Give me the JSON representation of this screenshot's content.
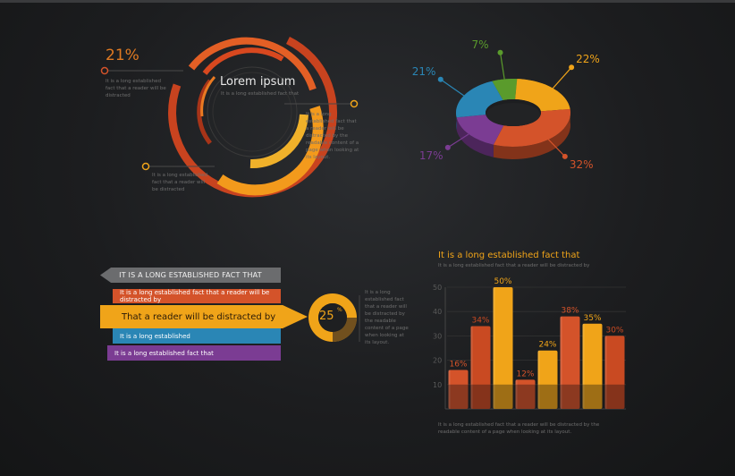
{
  "radial": {
    "percent": "21%",
    "percent_value": 21,
    "left_caption": "It is a long established fact that a reader will be distracted",
    "title": "Lorem ipsum",
    "subtitle": "It is a long established fact that",
    "right_caption": "It is a long established fact that a reader will be distracted by the readable content of a page when looking at its layout.",
    "bottom_caption": "It is a long established fact that a reader will be distracted"
  },
  "donut": {
    "slices": [
      {
        "label": "7%",
        "value": 7,
        "color": "#5a9b2c"
      },
      {
        "label": "22%",
        "value": 22,
        "color": "#f0a419"
      },
      {
        "label": "32%",
        "value": 32,
        "color": "#d4532a"
      },
      {
        "label": "17%",
        "value": 17,
        "color": "#7b3c93"
      },
      {
        "label": "21%",
        "value": 21,
        "color": "#2a86b5"
      }
    ]
  },
  "ribbons": {
    "header": "IT IS A LONG ESTABLISHED FACT THAT",
    "rows": [
      {
        "text": "It is a long established fact that a reader will be distracted by",
        "color": "#d4532a"
      },
      {
        "text": "That a reader will be distracted by",
        "color": "#f0a419"
      },
      {
        "text": "It is a long established",
        "color": "#2a86b5"
      },
      {
        "text": "It is a long established fact that",
        "color": "#7b3c93"
      }
    ],
    "badge_value": "25",
    "badge_suffix": "%",
    "badge_fraction": 0.25,
    "badge_caption": "It is a long established fact that a reader will be distracted by the readable content of a page when looking at its layout."
  },
  "chart_data": {
    "type": "bar",
    "title": "It is a long established fact that",
    "subtitle": "It is a long established fact that a reader will be distracted by",
    "footer": "It is a long established fact that a reader will be distracted by the readable content of a page when looking at its layout.",
    "ylim": [
      0,
      50
    ],
    "yticks": [
      10,
      20,
      30,
      40,
      50
    ],
    "values": [
      16,
      34,
      50,
      12,
      24,
      38,
      35,
      30
    ],
    "labels": [
      "16%",
      "34%",
      "50%",
      "12%",
      "24%",
      "38%",
      "35%",
      "30%"
    ],
    "colors": [
      "#d4532a",
      "#c94a22",
      "#f0a419",
      "#d4532a",
      "#f0a419",
      "#d4532a",
      "#f0a419",
      "#c94a22"
    ],
    "grid": true,
    "legend": "none"
  }
}
